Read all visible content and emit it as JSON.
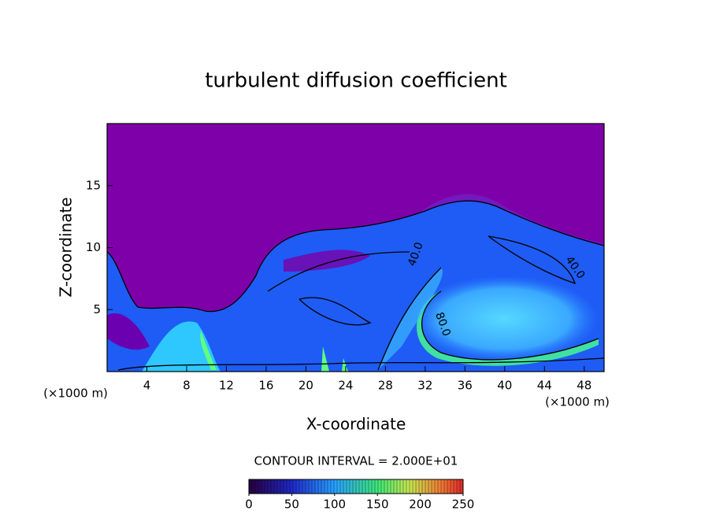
{
  "chart_data": {
    "type": "contour",
    "title": "turbulent diffusion coefficient",
    "x_label": "X-coordinate",
    "y_label": "Z-coordinate",
    "x_unit": "(×1000 m)",
    "xlim": [
      0,
      50
    ],
    "xticks": [
      4,
      8,
      12,
      16,
      20,
      24,
      28,
      32,
      36,
      40,
      44,
      48
    ],
    "ylim": [
      0,
      20
    ],
    "yticks": [
      5,
      10,
      15
    ],
    "contour_labels": [
      {
        "value": 40,
        "label": "40.0"
      },
      {
        "value": 40,
        "label": "40.0"
      },
      {
        "value": 80,
        "label": "80.0"
      }
    ],
    "contour_interval": "CONTOUR INTERVAL = 2.000E+01",
    "clim": [
      0,
      250
    ],
    "cticks": [
      0,
      50,
      100,
      150,
      200,
      250
    ]
  }
}
